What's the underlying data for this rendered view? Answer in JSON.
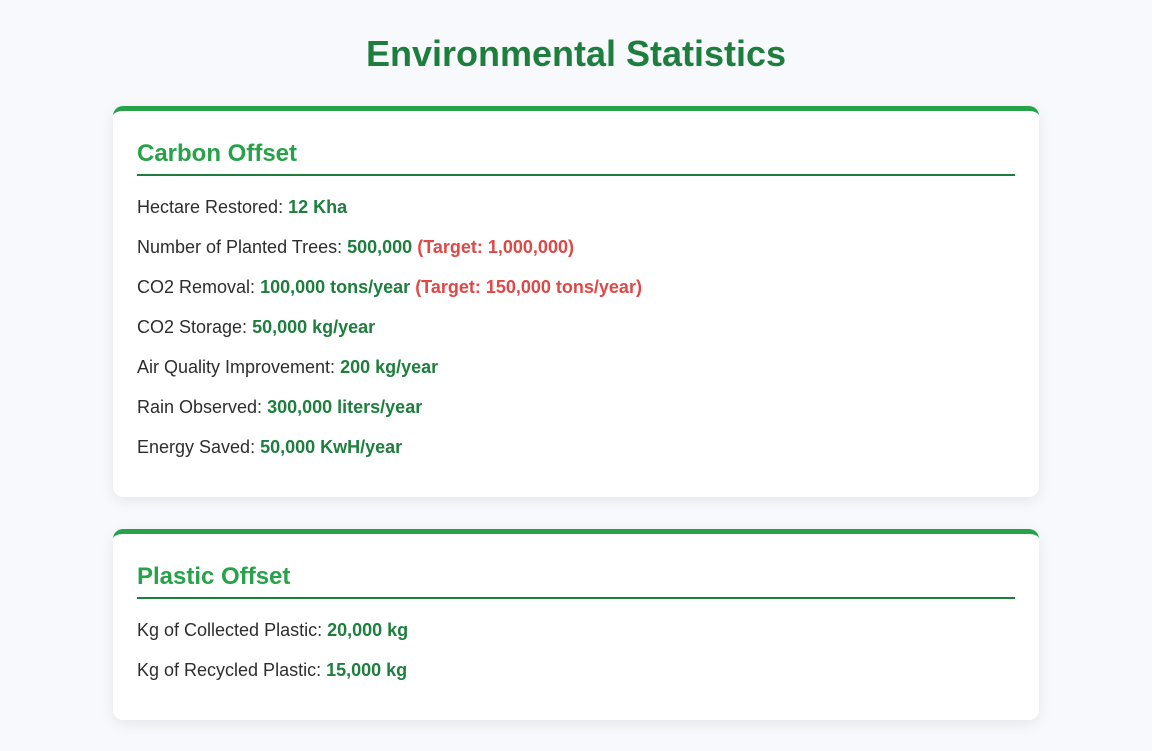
{
  "page": {
    "title": "Environmental Statistics"
  },
  "carbon": {
    "heading": "Carbon Offset",
    "stats": [
      {
        "label": "Hectare Restored:",
        "value": "12 Kha",
        "target": ""
      },
      {
        "label": "Number of Planted Trees:",
        "value": "500,000",
        "target": "(Target: 1,000,000)"
      },
      {
        "label": "CO2 Removal:",
        "value": "100,000 tons/year",
        "target": "(Target: 150,000 tons/year)"
      },
      {
        "label": "CO2 Storage:",
        "value": "50,000 kg/year",
        "target": ""
      },
      {
        "label": "Air Quality Improvement:",
        "value": "200 kg/year",
        "target": ""
      },
      {
        "label": "Rain Observed:",
        "value": "300,000 liters/year",
        "target": ""
      },
      {
        "label": "Energy Saved:",
        "value": "50,000 KwH/year",
        "target": ""
      }
    ]
  },
  "plastic": {
    "heading": "Plastic Offset",
    "stats": [
      {
        "label": "Kg of Collected Plastic:",
        "value": "20,000 kg",
        "target": ""
      },
      {
        "label": "Kg of Recycled Plastic:",
        "value": "15,000 kg",
        "target": ""
      }
    ]
  },
  "colors": {
    "title": "#1e7e3e",
    "accent": "#27a24a",
    "value": "#1e7e3e",
    "target": "#e04848",
    "background": "#f7f9fc"
  }
}
